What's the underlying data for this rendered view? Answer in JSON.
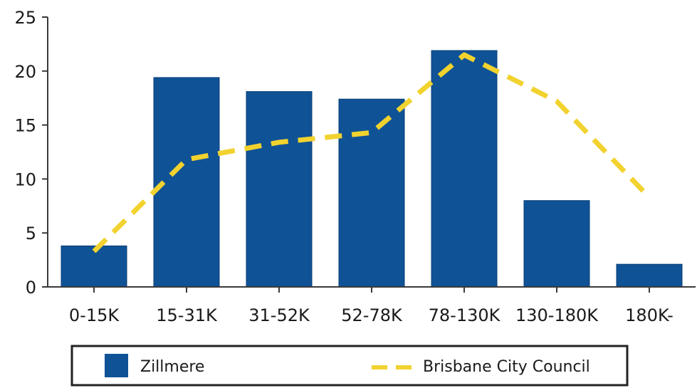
{
  "chart_data": {
    "type": "bar",
    "categories": [
      "0-15K",
      "15-31K",
      "31-52K",
      "52-78K",
      "78-130K",
      "130-180K",
      "180K-"
    ],
    "y_ticks": [
      0,
      5,
      10,
      15,
      20,
      25
    ],
    "ylim": [
      0,
      25
    ],
    "grid": false,
    "legend_position": "bottom",
    "series": [
      {
        "name": "Zillmere",
        "kind": "bar",
        "color": "#0f5296",
        "values": [
          3.8,
          19.4,
          18.1,
          17.4,
          21.9,
          8.0,
          2.1
        ]
      },
      {
        "name": "Brisbane City Council",
        "kind": "line",
        "style": "dashed",
        "color": "#f2d22e",
        "values": [
          3.3,
          11.8,
          13.4,
          14.3,
          21.5,
          17.2,
          8.3
        ]
      }
    ],
    "legend": [
      {
        "label": "Zillmere"
      },
      {
        "label": "Brisbane City Council"
      }
    ]
  }
}
